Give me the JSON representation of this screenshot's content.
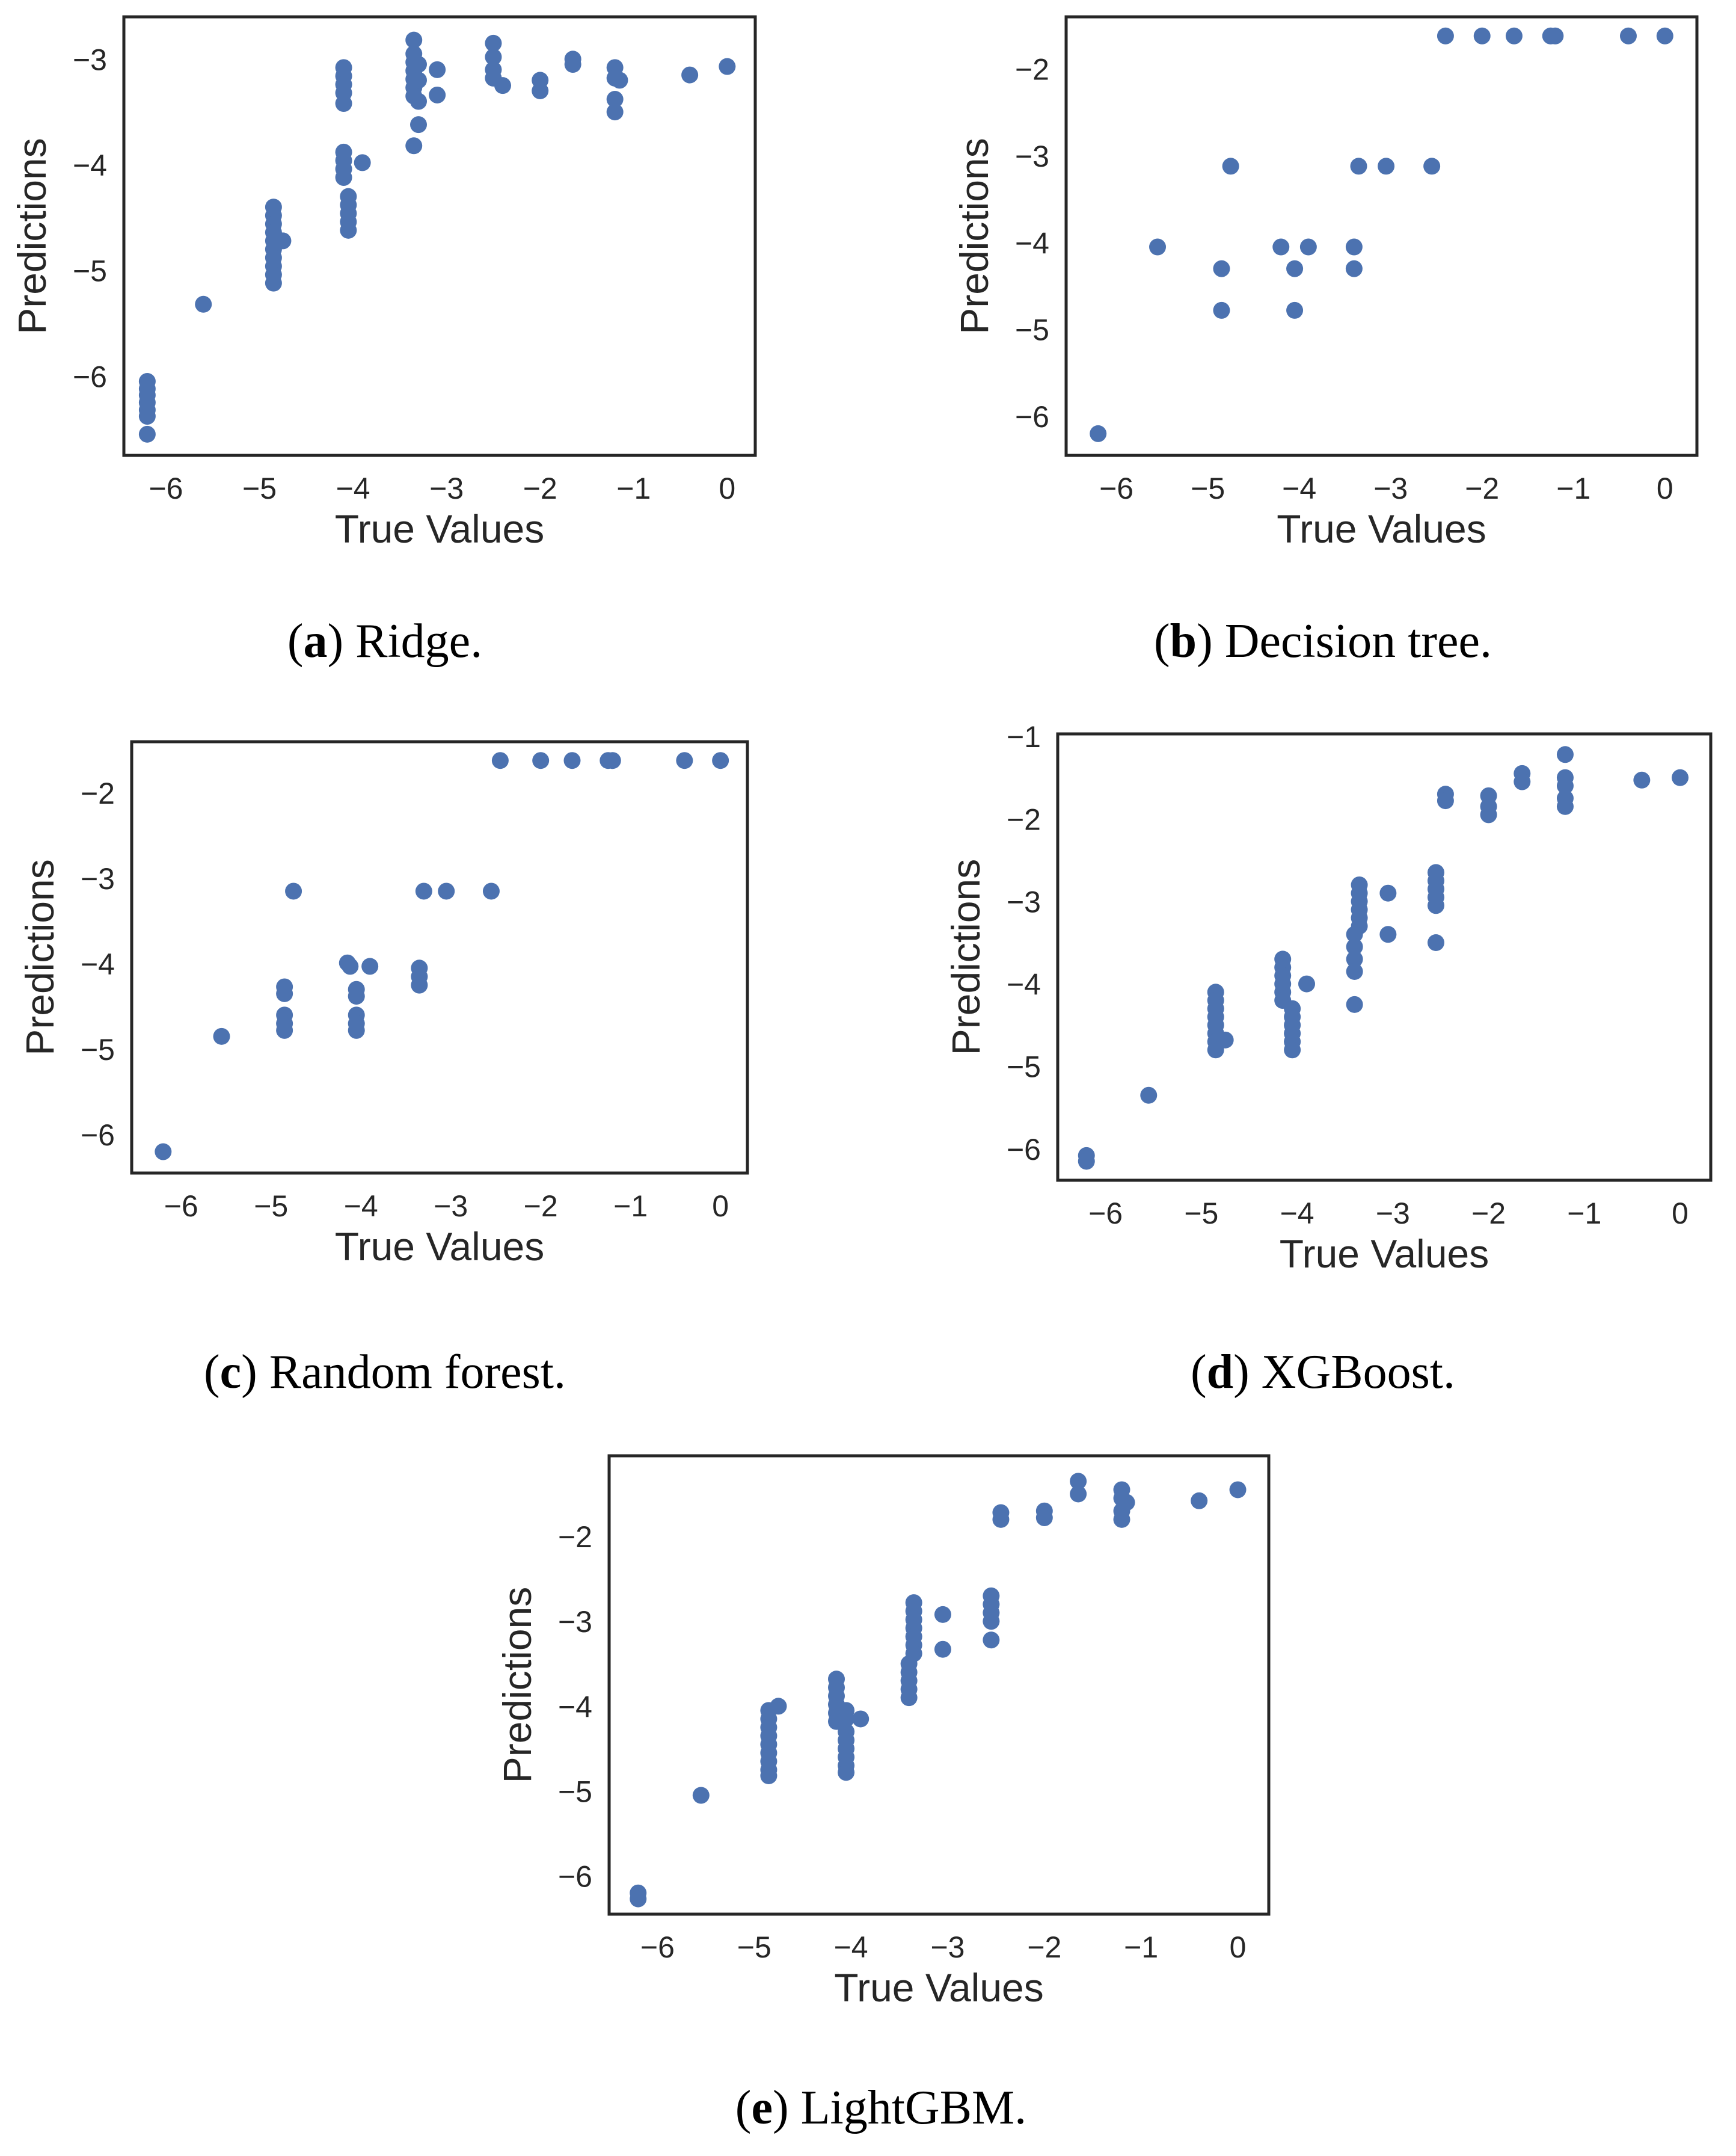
{
  "marker_color": "#4c72b0",
  "frame_color": "#262626",
  "chart_data": [
    {
      "id": "a",
      "type": "scatter",
      "caption_letter": "a",
      "caption_text": " Ridge.",
      "xlabel": "True Values",
      "ylabel": "Predictions",
      "xlim": [
        -6.45,
        0.3
      ],
      "ylim": [
        -6.75,
        -2.6
      ],
      "xticks": [
        -6,
        -5,
        -4,
        -3,
        -2,
        -1,
        0
      ],
      "xtick_labels": [
        "−6",
        "−5",
        "−4",
        "−3",
        "−2",
        "−1",
        "0"
      ],
      "yticks": [
        -6,
        -5,
        -4,
        -3
      ],
      "ytick_labels": [
        "−6",
        "−5",
        "−4",
        "−3"
      ],
      "points": [
        [
          -6.2,
          -6.05
        ],
        [
          -6.2,
          -6.12
        ],
        [
          -6.2,
          -6.18
        ],
        [
          -6.2,
          -6.25
        ],
        [
          -6.2,
          -6.32
        ],
        [
          -6.2,
          -6.38
        ],
        [
          -6.2,
          -6.55
        ],
        [
          -5.6,
          -5.32
        ],
        [
          -4.85,
          -4.4
        ],
        [
          -4.85,
          -4.48
        ],
        [
          -4.85,
          -4.56
        ],
        [
          -4.85,
          -4.64
        ],
        [
          -4.85,
          -4.72
        ],
        [
          -4.85,
          -4.8
        ],
        [
          -4.85,
          -4.88
        ],
        [
          -4.85,
          -4.96
        ],
        [
          -4.85,
          -5.04
        ],
        [
          -4.85,
          -5.12
        ],
        [
          -4.75,
          -4.72
        ],
        [
          -4.1,
          -3.08
        ],
        [
          -4.1,
          -3.16
        ],
        [
          -4.1,
          -3.24
        ],
        [
          -4.1,
          -3.32
        ],
        [
          -4.1,
          -3.42
        ],
        [
          -4.1,
          -3.88
        ],
        [
          -4.1,
          -3.96
        ],
        [
          -4.1,
          -4.04
        ],
        [
          -4.1,
          -4.12
        ],
        [
          -4.05,
          -4.3
        ],
        [
          -4.05,
          -4.38
        ],
        [
          -4.05,
          -4.46
        ],
        [
          -4.05,
          -4.54
        ],
        [
          -4.05,
          -4.62
        ],
        [
          -3.9,
          -3.98
        ],
        [
          -3.35,
          -2.82
        ],
        [
          -3.35,
          -2.95
        ],
        [
          -3.35,
          -3.03
        ],
        [
          -3.35,
          -3.11
        ],
        [
          -3.35,
          -3.19
        ],
        [
          -3.35,
          -3.27
        ],
        [
          -3.35,
          -3.35
        ],
        [
          -3.35,
          -3.82
        ],
        [
          -3.3,
          -3.05
        ],
        [
          -3.3,
          -3.2
        ],
        [
          -3.3,
          -3.4
        ],
        [
          -3.3,
          -3.62
        ],
        [
          -3.1,
          -3.1
        ],
        [
          -3.1,
          -3.34
        ],
        [
          -2.5,
          -2.85
        ],
        [
          -2.5,
          -2.98
        ],
        [
          -2.5,
          -3.1
        ],
        [
          -2.5,
          -3.18
        ],
        [
          -2.4,
          -3.25
        ],
        [
          -2.0,
          -3.2
        ],
        [
          -2.0,
          -3.3
        ],
        [
          -1.65,
          -3.0
        ],
        [
          -1.65,
          -3.05
        ],
        [
          -1.2,
          -3.08
        ],
        [
          -1.2,
          -3.18
        ],
        [
          -1.2,
          -3.38
        ],
        [
          -1.2,
          -3.5
        ],
        [
          -1.15,
          -3.2
        ],
        [
          -0.4,
          -3.15
        ],
        [
          0.0,
          -3.07
        ]
      ]
    },
    {
      "id": "b",
      "type": "scatter",
      "caption_letter": "b",
      "caption_text": " Decision tree.",
      "xlabel": "True Values",
      "ylabel": "Predictions",
      "xlim": [
        -6.55,
        0.35
      ],
      "ylim": [
        -6.45,
        -1.4
      ],
      "xticks": [
        -6,
        -5,
        -4,
        -3,
        -2,
        -1,
        0
      ],
      "xtick_labels": [
        "−6",
        "−5",
        "−4",
        "−3",
        "−2",
        "−1",
        "0"
      ],
      "yticks": [
        -6,
        -5,
        -4,
        -3,
        -2
      ],
      "ytick_labels": [
        "−6",
        "−5",
        "−4",
        "−3",
        "−2"
      ],
      "points": [
        [
          -6.2,
          -6.2
        ],
        [
          -5.55,
          -4.05
        ],
        [
          -4.85,
          -4.3
        ],
        [
          -4.85,
          -4.78
        ],
        [
          -4.75,
          -3.12
        ],
        [
          -4.2,
          -4.05
        ],
        [
          -4.05,
          -4.3
        ],
        [
          -4.05,
          -4.78
        ],
        [
          -3.9,
          -4.05
        ],
        [
          -3.4,
          -4.05
        ],
        [
          -3.4,
          -4.3
        ],
        [
          -3.35,
          -3.12
        ],
        [
          -3.05,
          -3.12
        ],
        [
          -2.55,
          -3.12
        ],
        [
          -2.4,
          -1.62
        ],
        [
          -2.0,
          -1.62
        ],
        [
          -1.65,
          -1.62
        ],
        [
          -1.25,
          -1.62
        ],
        [
          -1.2,
          -1.62
        ],
        [
          -0.4,
          -1.62
        ],
        [
          0.0,
          -1.62
        ]
      ]
    },
    {
      "id": "c",
      "type": "scatter",
      "caption_letter": "c",
      "caption_text": " Random forest.",
      "xlabel": "True Values",
      "ylabel": "Predictions",
      "xlim": [
        -6.55,
        0.3
      ],
      "ylim": [
        -6.45,
        -1.4
      ],
      "xticks": [
        -6,
        -5,
        -4,
        -3,
        -2,
        -1,
        0
      ],
      "xtick_labels": [
        "−6",
        "−5",
        "−4",
        "−3",
        "−2",
        "−1",
        "0"
      ],
      "yticks": [
        -6,
        -5,
        -4,
        -3,
        -2
      ],
      "ytick_labels": [
        "−6",
        "−5",
        "−4",
        "−3",
        "−2"
      ],
      "points": [
        [
          -6.2,
          -6.2
        ],
        [
          -5.55,
          -4.85
        ],
        [
          -4.85,
          -4.27
        ],
        [
          -4.85,
          -4.35
        ],
        [
          -4.85,
          -4.6
        ],
        [
          -4.85,
          -4.7
        ],
        [
          -4.85,
          -4.78
        ],
        [
          -4.75,
          -3.15
        ],
        [
          -4.15,
          -3.99
        ],
        [
          -4.12,
          -4.03
        ],
        [
          -4.05,
          -4.3
        ],
        [
          -4.05,
          -4.38
        ],
        [
          -4.05,
          -4.6
        ],
        [
          -4.05,
          -4.7
        ],
        [
          -4.05,
          -4.78
        ],
        [
          -3.9,
          -4.03
        ],
        [
          -3.35,
          -4.05
        ],
        [
          -3.35,
          -4.15
        ],
        [
          -3.35,
          -4.25
        ],
        [
          -3.3,
          -3.15
        ],
        [
          -3.05,
          -3.15
        ],
        [
          -2.55,
          -3.15
        ],
        [
          -2.45,
          -1.62
        ],
        [
          -2.0,
          -1.62
        ],
        [
          -1.65,
          -1.62
        ],
        [
          -1.25,
          -1.62
        ],
        [
          -1.2,
          -1.62
        ],
        [
          -0.4,
          -1.62
        ],
        [
          0.0,
          -1.62
        ]
      ]
    },
    {
      "id": "d",
      "type": "scatter",
      "caption_letter": "d",
      "caption_text": " XGBoost.",
      "xlabel": "True Values",
      "ylabel": "Predictions",
      "xlim": [
        -6.5,
        0.32
      ],
      "ylim": [
        -6.38,
        -0.97
      ],
      "xticks": [
        -6,
        -5,
        -4,
        -3,
        -2,
        -1,
        0
      ],
      "xtick_labels": [
        "−6",
        "−5",
        "−4",
        "−3",
        "−2",
        "−1",
        "0"
      ],
      "yticks": [
        -6,
        -5,
        -4,
        -3,
        -2,
        -1
      ],
      "ytick_labels": [
        "−6",
        "−5",
        "−4",
        "−3",
        "−2",
        "−1"
      ],
      "points": [
        [
          -6.2,
          -6.08
        ],
        [
          -6.2,
          -6.15
        ],
        [
          -5.55,
          -5.35
        ],
        [
          -4.85,
          -4.1
        ],
        [
          -4.85,
          -4.2
        ],
        [
          -4.85,
          -4.3
        ],
        [
          -4.85,
          -4.4
        ],
        [
          -4.85,
          -4.5
        ],
        [
          -4.85,
          -4.6
        ],
        [
          -4.85,
          -4.7
        ],
        [
          -4.85,
          -4.8
        ],
        [
          -4.75,
          -4.68
        ],
        [
          -4.15,
          -3.7
        ],
        [
          -4.15,
          -3.8
        ],
        [
          -4.15,
          -3.9
        ],
        [
          -4.15,
          -4.0
        ],
        [
          -4.15,
          -4.1
        ],
        [
          -4.15,
          -4.2
        ],
        [
          -4.05,
          -4.3
        ],
        [
          -4.05,
          -4.4
        ],
        [
          -4.05,
          -4.5
        ],
        [
          -4.05,
          -4.6
        ],
        [
          -4.05,
          -4.7
        ],
        [
          -4.05,
          -4.8
        ],
        [
          -3.9,
          -4.0
        ],
        [
          -3.4,
          -3.4
        ],
        [
          -3.4,
          -3.55
        ],
        [
          -3.4,
          -3.7
        ],
        [
          -3.4,
          -3.85
        ],
        [
          -3.4,
          -4.25
        ],
        [
          -3.35,
          -2.8
        ],
        [
          -3.35,
          -2.9
        ],
        [
          -3.35,
          -3.0
        ],
        [
          -3.35,
          -3.1
        ],
        [
          -3.35,
          -3.2
        ],
        [
          -3.35,
          -3.3
        ],
        [
          -3.05,
          -2.9
        ],
        [
          -3.05,
          -3.4
        ],
        [
          -2.55,
          -2.65
        ],
        [
          -2.55,
          -2.75
        ],
        [
          -2.55,
          -2.85
        ],
        [
          -2.55,
          -2.95
        ],
        [
          -2.55,
          -3.05
        ],
        [
          -2.55,
          -3.5
        ],
        [
          -2.45,
          -1.7
        ],
        [
          -2.45,
          -1.78
        ],
        [
          -2.0,
          -1.72
        ],
        [
          -2.0,
          -1.85
        ],
        [
          -2.0,
          -1.95
        ],
        [
          -1.65,
          -1.45
        ],
        [
          -1.65,
          -1.55
        ],
        [
          -1.2,
          -1.22
        ],
        [
          -1.2,
          -1.5
        ],
        [
          -1.2,
          -1.6
        ],
        [
          -1.2,
          -1.75
        ],
        [
          -1.2,
          -1.85
        ],
        [
          -0.4,
          -1.53
        ],
        [
          0.0,
          -1.5
        ]
      ]
    },
    {
      "id": "e",
      "type": "scatter",
      "caption_letter": "e",
      "caption_text": " LightGBM.",
      "xlabel": "True Values",
      "ylabel": "Predictions",
      "xlim": [
        -6.5,
        0.32
      ],
      "ylim": [
        -6.45,
        -1.05
      ],
      "xticks": [
        -6,
        -5,
        -4,
        -3,
        -2,
        -1,
        0
      ],
      "xtick_labels": [
        "−6",
        "−5",
        "−4",
        "−3",
        "−2",
        "−1",
        "0"
      ],
      "yticks": [
        -6,
        -5,
        -4,
        -3,
        -2
      ],
      "ytick_labels": [
        "−6",
        "−5",
        "−4",
        "−3",
        "−2"
      ],
      "points": [
        [
          -6.2,
          -6.2
        ],
        [
          -6.2,
          -6.27
        ],
        [
          -5.55,
          -5.05
        ],
        [
          -4.85,
          -4.05
        ],
        [
          -4.85,
          -4.15
        ],
        [
          -4.85,
          -4.25
        ],
        [
          -4.85,
          -4.35
        ],
        [
          -4.85,
          -4.45
        ],
        [
          -4.85,
          -4.55
        ],
        [
          -4.85,
          -4.65
        ],
        [
          -4.85,
          -4.75
        ],
        [
          -4.85,
          -4.82
        ],
        [
          -4.75,
          -4.0
        ],
        [
          -4.15,
          -3.68
        ],
        [
          -4.15,
          -3.78
        ],
        [
          -4.15,
          -3.88
        ],
        [
          -4.15,
          -3.98
        ],
        [
          -4.15,
          -4.08
        ],
        [
          -4.15,
          -4.18
        ],
        [
          -4.05,
          -4.05
        ],
        [
          -4.05,
          -4.15
        ],
        [
          -4.05,
          -4.3
        ],
        [
          -4.05,
          -4.4
        ],
        [
          -4.05,
          -4.5
        ],
        [
          -4.05,
          -4.6
        ],
        [
          -4.05,
          -4.7
        ],
        [
          -4.05,
          -4.78
        ],
        [
          -3.9,
          -4.15
        ],
        [
          -3.4,
          -3.5
        ],
        [
          -3.4,
          -3.6
        ],
        [
          -3.4,
          -3.7
        ],
        [
          -3.4,
          -3.8
        ],
        [
          -3.4,
          -3.9
        ],
        [
          -3.35,
          -2.78
        ],
        [
          -3.35,
          -2.88
        ],
        [
          -3.35,
          -2.98
        ],
        [
          -3.35,
          -3.08
        ],
        [
          -3.35,
          -3.18
        ],
        [
          -3.35,
          -3.28
        ],
        [
          -3.35,
          -3.38
        ],
        [
          -3.05,
          -2.92
        ],
        [
          -3.05,
          -3.33
        ],
        [
          -2.55,
          -2.7
        ],
        [
          -2.55,
          -2.8
        ],
        [
          -2.55,
          -2.9
        ],
        [
          -2.55,
          -3.0
        ],
        [
          -2.55,
          -3.22
        ],
        [
          -2.45,
          -1.72
        ],
        [
          -2.45,
          -1.8
        ],
        [
          -2.0,
          -1.7
        ],
        [
          -2.0,
          -1.78
        ],
        [
          -1.65,
          -1.35
        ],
        [
          -1.65,
          -1.5
        ],
        [
          -1.2,
          -1.45
        ],
        [
          -1.2,
          -1.55
        ],
        [
          -1.2,
          -1.7
        ],
        [
          -1.2,
          -1.8
        ],
        [
          -1.15,
          -1.6
        ],
        [
          -0.4,
          -1.58
        ],
        [
          0.0,
          -1.45
        ]
      ]
    }
  ]
}
